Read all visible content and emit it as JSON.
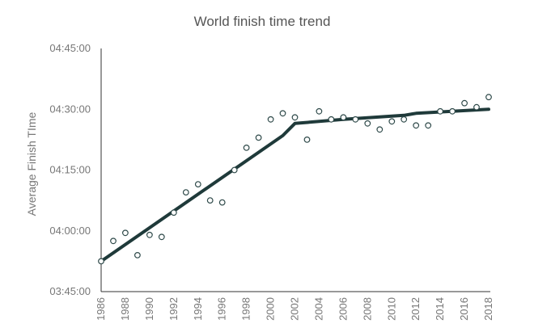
{
  "chart_data": {
    "type": "scatter",
    "title": "World finish time trend",
    "ylabel": "Average Finish TIme",
    "xlabel": "",
    "xlim": [
      1986,
      2018
    ],
    "ylim_minutes": [
      225,
      285
    ],
    "y_ticks": [
      {
        "label": "03:45:00",
        "minutes": 225
      },
      {
        "label": "04:00:00",
        "minutes": 240
      },
      {
        "label": "04:15:00",
        "minutes": 255
      },
      {
        "label": "04:30:00",
        "minutes": 270
      },
      {
        "label": "04:45:00",
        "minutes": 285
      }
    ],
    "x_ticks": [
      "1986",
      "1988",
      "1990",
      "1992",
      "1994",
      "1996",
      "1998",
      "2000",
      "2002",
      "2004",
      "2006",
      "2008",
      "2010",
      "2012",
      "2014",
      "2016",
      "2018"
    ],
    "grid": false,
    "legend": "none",
    "points": [
      {
        "year": 1986,
        "time": "03:52:30"
      },
      {
        "year": 1987,
        "time": "03:57:30"
      },
      {
        "year": 1988,
        "time": "03:59:30"
      },
      {
        "year": 1989,
        "time": "03:54:00"
      },
      {
        "year": 1990,
        "time": "03:59:00"
      },
      {
        "year": 1991,
        "time": "03:58:30"
      },
      {
        "year": 1992,
        "time": "04:04:30"
      },
      {
        "year": 1993,
        "time": "04:09:30"
      },
      {
        "year": 1994,
        "time": "04:11:30"
      },
      {
        "year": 1995,
        "time": "04:07:30"
      },
      {
        "year": 1996,
        "time": "04:07:00"
      },
      {
        "year": 1997,
        "time": "04:15:00"
      },
      {
        "year": 1998,
        "time": "04:20:30"
      },
      {
        "year": 1999,
        "time": "04:23:00"
      },
      {
        "year": 2000,
        "time": "04:27:30"
      },
      {
        "year": 2001,
        "time": "04:29:00"
      },
      {
        "year": 2002,
        "time": "04:28:00"
      },
      {
        "year": 2003,
        "time": "04:22:30"
      },
      {
        "year": 2004,
        "time": "04:29:30"
      },
      {
        "year": 2005,
        "time": "04:27:30"
      },
      {
        "year": 2006,
        "time": "04:28:00"
      },
      {
        "year": 2007,
        "time": "04:27:30"
      },
      {
        "year": 2008,
        "time": "04:26:30"
      },
      {
        "year": 2009,
        "time": "04:25:00"
      },
      {
        "year": 2010,
        "time": "04:27:00"
      },
      {
        "year": 2011,
        "time": "04:27:30"
      },
      {
        "year": 2012,
        "time": "04:26:00"
      },
      {
        "year": 2013,
        "time": "04:26:00"
      },
      {
        "year": 2014,
        "time": "04:29:30"
      },
      {
        "year": 2015,
        "time": "04:29:30"
      },
      {
        "year": 2016,
        "time": "04:31:30"
      },
      {
        "year": 2017,
        "time": "04:30:30"
      },
      {
        "year": 2018,
        "time": "04:33:00"
      }
    ],
    "trend_line": [
      {
        "year": 1986,
        "time": "03:52:30"
      },
      {
        "year": 2001,
        "time": "04:23:30"
      },
      {
        "year": 2002,
        "time": "04:26:30"
      },
      {
        "year": 2006,
        "time": "04:27:30"
      },
      {
        "year": 2011,
        "time": "04:28:30"
      },
      {
        "year": 2012,
        "time": "04:29:00"
      },
      {
        "year": 2018,
        "time": "04:30:00"
      }
    ],
    "colors": {
      "trend": "#1f3a3a",
      "marker": "#2f4a4a",
      "axis": "#333333",
      "text": "#777777"
    }
  }
}
